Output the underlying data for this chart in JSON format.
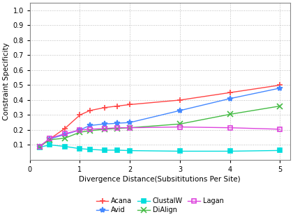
{
  "xlabel": "Divergence Distance(Subsititutions Per Site)",
  "ylabel": "Constraint Specificity",
  "xlim": [
    0,
    5.2
  ],
  "ylim": [
    0.0,
    1.05
  ],
  "yticks": [
    0.1,
    0.2,
    0.3,
    0.4,
    0.5,
    0.6,
    0.7,
    0.8,
    0.9,
    1.0
  ],
  "xticks": [
    0,
    1,
    2,
    3,
    4,
    5
  ],
  "series": {
    "Acana": {
      "x": [
        0.2,
        0.4,
        0.7,
        1.0,
        1.2,
        1.5,
        1.75,
        2.0,
        3.0,
        4.0,
        5.0
      ],
      "y": [
        0.09,
        0.14,
        0.21,
        0.3,
        0.33,
        0.35,
        0.36,
        0.37,
        0.4,
        0.45,
        0.5
      ],
      "color": "#ff4444",
      "marker": "+",
      "markersize": 6,
      "linestyle": "-"
    },
    "Avid": {
      "x": [
        0.2,
        0.4,
        0.7,
        1.0,
        1.2,
        1.5,
        1.75,
        2.0,
        3.0,
        4.0,
        5.0
      ],
      "y": [
        0.09,
        0.14,
        0.17,
        0.2,
        0.23,
        0.24,
        0.245,
        0.25,
        0.33,
        0.41,
        0.48
      ],
      "color": "#4488ff",
      "marker": "*",
      "markersize": 6,
      "linestyle": "-"
    },
    "ClustalW": {
      "x": [
        0.2,
        0.4,
        0.7,
        1.0,
        1.2,
        1.5,
        1.75,
        2.0,
        3.0,
        4.0,
        5.0
      ],
      "y": [
        0.085,
        0.1,
        0.09,
        0.075,
        0.07,
        0.065,
        0.065,
        0.062,
        0.058,
        0.058,
        0.063
      ],
      "color": "#00dddd",
      "marker": "s",
      "markersize": 5,
      "linestyle": "-"
    },
    "DiAlign": {
      "x": [
        0.2,
        0.4,
        0.7,
        1.0,
        1.2,
        1.5,
        1.75,
        2.0,
        3.0,
        4.0,
        5.0
      ],
      "y": [
        0.09,
        0.135,
        0.145,
        0.185,
        0.195,
        0.205,
        0.21,
        0.215,
        0.24,
        0.305,
        0.36
      ],
      "color": "#44bb44",
      "marker": "x",
      "markersize": 6,
      "linestyle": "-"
    },
    "Lagan": {
      "x": [
        0.2,
        0.4,
        0.7,
        1.0,
        1.2,
        1.5,
        1.75,
        2.0,
        3.0,
        4.0,
        5.0
      ],
      "y": [
        0.09,
        0.145,
        0.175,
        0.2,
        0.205,
        0.21,
        0.215,
        0.215,
        0.22,
        0.215,
        0.205
      ],
      "color": "#dd44dd",
      "marker": "s",
      "markersize": 5,
      "linestyle": "-",
      "markerfacecolor": "none"
    }
  },
  "background_color": "#ffffff",
  "plot_bg_color": "#ffffff",
  "grid_color": "#aaaaaa"
}
